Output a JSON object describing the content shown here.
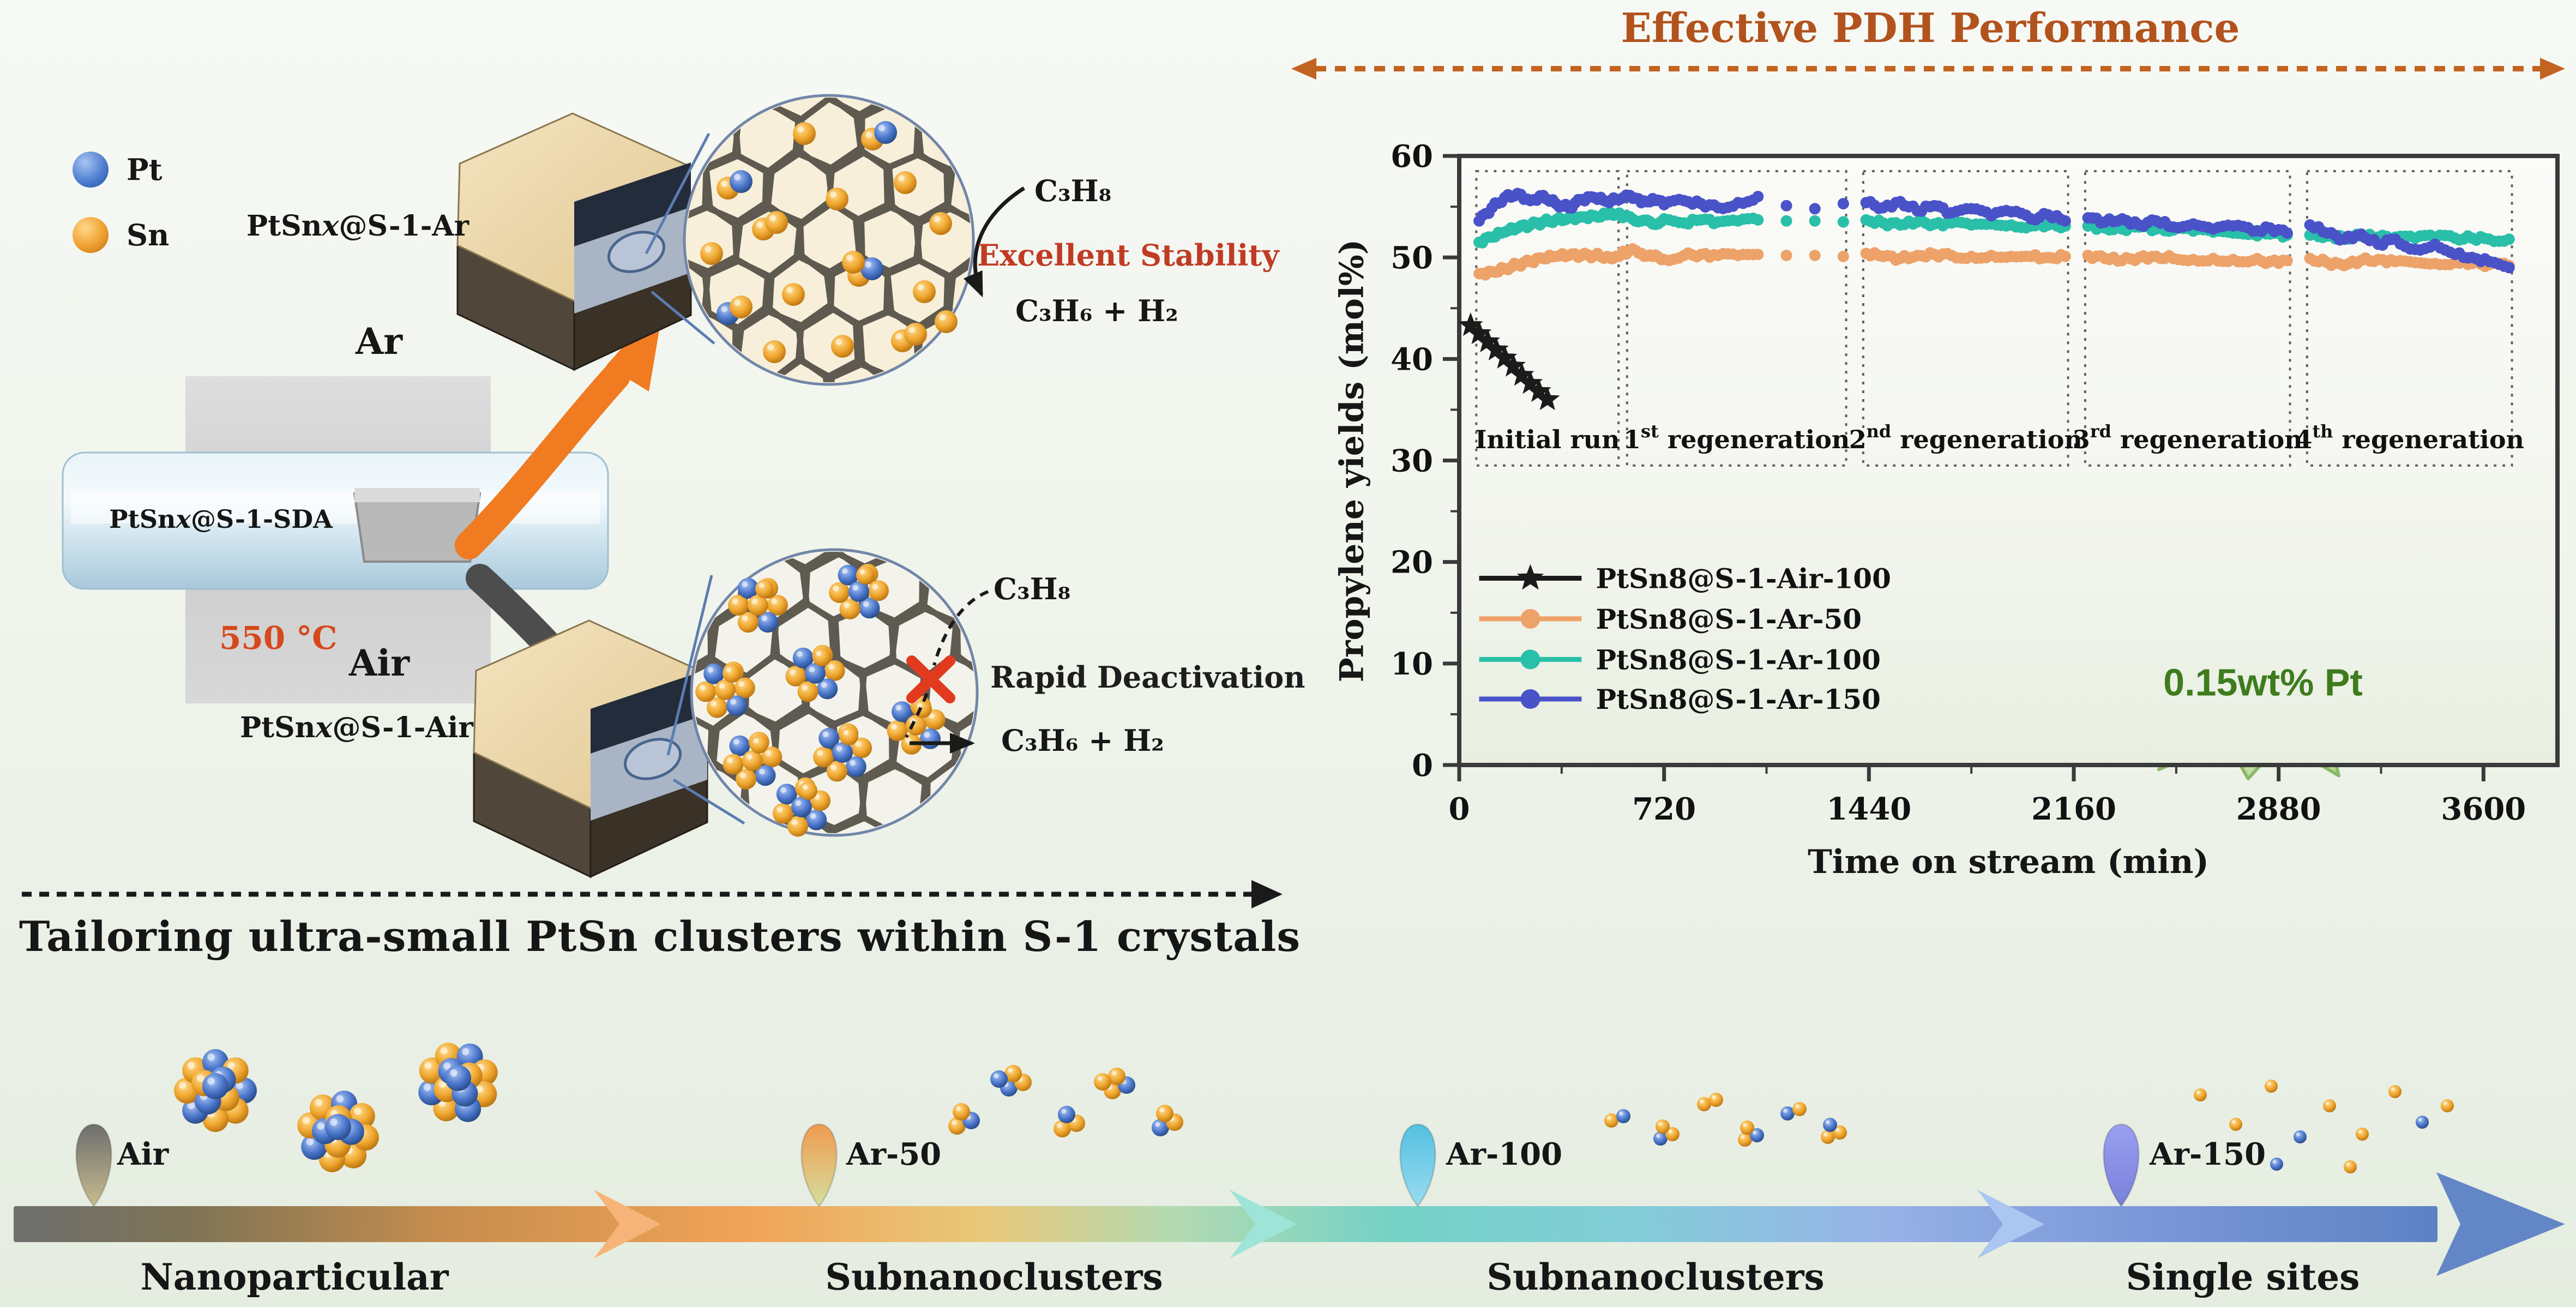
{
  "header": {
    "title": "Effective PDH Performance",
    "title_color": "#b2531d",
    "arrow_color": "#c2641f"
  },
  "left": {
    "atoms": [
      {
        "symbol": "Pt",
        "color": "#4f7fd0"
      },
      {
        "symbol": "Sn",
        "color": "#f0a030"
      }
    ],
    "precursor": {
      "pre": "PtSn",
      "it": "x",
      "post": "@S-1-SDA"
    },
    "ar_product": {
      "pre": "PtSn",
      "it": "x",
      "post": "@S-1-Ar"
    },
    "air_product": {
      "pre": "PtSn",
      "it": "x",
      "post": "@S-1-Air"
    },
    "temperature": "550 °C",
    "ar_gas": "Ar",
    "air_gas": "Air",
    "top_inset": {
      "reactant": "C₃H₈",
      "verdict": "Excellent Stability",
      "verdict_color": "#c13b24",
      "products": "C₃H₆ + H₂"
    },
    "bottom_inset": {
      "reactant": "C₃H₈",
      "verdict": "Rapid Deactivation",
      "verdict_color": "#1d1d1d",
      "products": "C₃H₆ + H₂"
    },
    "tailoring": "Tailoring ultra-small PtSn clusters within S-1 crystals"
  },
  "badge": {
    "text": "0.15wt% Pt",
    "color": "#3e7c1e"
  },
  "chart_data": {
    "type": "scatter",
    "title": "",
    "xlabel": "Time on stream (min)",
    "ylabel": "Propylene yields (mol%)",
    "xlim": [
      0,
      3860
    ],
    "ylim": [
      0,
      60
    ],
    "xticks": [
      0,
      720,
      1440,
      2160,
      2880,
      3600
    ],
    "yticks": [
      0,
      10,
      20,
      30,
      40,
      50,
      60
    ],
    "grid": false,
    "legend_position": "inside-left",
    "box_y": [
      29.5,
      58.5
    ],
    "legend_rows_y": [
      18.4,
      14.4,
      10.4,
      6.5
    ],
    "panels": [
      {
        "num": "",
        "sup": "",
        "rest": "Initial run",
        "t0": 60,
        "t1": 560
      },
      {
        "num": "1",
        "sup": "st",
        "rest": " regeneration",
        "t0": 590,
        "t1": 1360
      },
      {
        "num": "2",
        "sup": "nd",
        "rest": " regeneration",
        "t0": 1420,
        "t1": 2140
      },
      {
        "num": "3",
        "sup": "rd",
        "rest": " regeneration",
        "t0": 2200,
        "t1": 2920
      },
      {
        "num": "4",
        "sup": "th",
        "rest": " regeneration",
        "t0": 2980,
        "t1": 3700
      }
    ],
    "series": [
      {
        "name": "PtSn8@S-1-Air-100",
        "color": "#1b1b1b",
        "marker": "star",
        "points": [
          [
            40,
            43.3
          ],
          [
            70,
            42.5
          ],
          [
            100,
            41.7
          ],
          [
            130,
            40.9
          ],
          [
            160,
            40.1
          ],
          [
            190,
            39.3
          ],
          [
            220,
            38.4
          ],
          [
            250,
            37.6
          ],
          [
            280,
            36.8
          ],
          [
            310,
            36.0
          ]
        ]
      },
      {
        "name": "PtSn8@S-1-Ar-50",
        "color": "#eda269",
        "marker": "circle",
        "points": [
          [
            70,
            48.4
          ],
          [
            115,
            48.6
          ],
          [
            160,
            48.9
          ],
          [
            205,
            49.3
          ],
          [
            250,
            49.6
          ],
          [
            295,
            49.9
          ],
          [
            340,
            50.1
          ],
          [
            385,
            50.2
          ],
          [
            430,
            50.2
          ],
          [
            475,
            50.2
          ],
          [
            520,
            50.1
          ],
          [
            550,
            50.1
          ],
          [
            600,
            50.7
          ],
          [
            640,
            50.4
          ],
          [
            680,
            50.1
          ],
          [
            720,
            49.8
          ],
          [
            790,
            50.2
          ],
          [
            850,
            50.3
          ],
          [
            910,
            50.2
          ],
          [
            980,
            50.2
          ],
          [
            1050,
            50.3
          ],
          [
            1150,
            50.2
          ],
          [
            1250,
            50.2
          ],
          [
            1350,
            50.1
          ],
          [
            1430,
            50.4
          ],
          [
            1490,
            50.1
          ],
          [
            1550,
            49.9
          ],
          [
            1610,
            50.2
          ],
          [
            1670,
            50.3
          ],
          [
            1730,
            50.2
          ],
          [
            1800,
            50.1
          ],
          [
            1870,
            50.2
          ],
          [
            1940,
            50.1
          ],
          [
            2010,
            50.1
          ],
          [
            2070,
            50.0
          ],
          [
            2130,
            50.1
          ],
          [
            2210,
            50.2
          ],
          [
            2270,
            49.9
          ],
          [
            2330,
            49.7
          ],
          [
            2390,
            50.0
          ],
          [
            2450,
            50.1
          ],
          [
            2510,
            49.9
          ],
          [
            2580,
            49.8
          ],
          [
            2650,
            49.9
          ],
          [
            2720,
            49.8
          ],
          [
            2790,
            49.7
          ],
          [
            2850,
            49.6
          ],
          [
            2910,
            49.7
          ],
          [
            2990,
            49.9
          ],
          [
            3050,
            49.5
          ],
          [
            3110,
            49.2
          ],
          [
            3170,
            49.7
          ],
          [
            3230,
            49.8
          ],
          [
            3290,
            49.6
          ],
          [
            3360,
            49.5
          ],
          [
            3430,
            49.4
          ],
          [
            3500,
            49.5
          ],
          [
            3560,
            49.4
          ],
          [
            3620,
            49.3
          ],
          [
            3690,
            49.2
          ]
        ]
      },
      {
        "name": "PtSn8@S-1-Ar-100",
        "color": "#29bfa8",
        "marker": "circle",
        "points": [
          [
            70,
            51.5
          ],
          [
            115,
            52.0
          ],
          [
            160,
            52.5
          ],
          [
            205,
            52.9
          ],
          [
            250,
            53.2
          ],
          [
            295,
            53.5
          ],
          [
            340,
            53.7
          ],
          [
            385,
            53.9
          ],
          [
            430,
            54.0
          ],
          [
            475,
            54.1
          ],
          [
            520,
            54.2
          ],
          [
            550,
            54.2
          ],
          [
            600,
            54.0
          ],
          [
            640,
            53.6
          ],
          [
            680,
            53.3
          ],
          [
            720,
            53.8
          ],
          [
            790,
            53.4
          ],
          [
            850,
            53.7
          ],
          [
            910,
            53.5
          ],
          [
            980,
            53.6
          ],
          [
            1050,
            53.7
          ],
          [
            1150,
            53.6
          ],
          [
            1250,
            53.6
          ],
          [
            1350,
            53.5
          ],
          [
            1430,
            53.7
          ],
          [
            1490,
            53.4
          ],
          [
            1550,
            53.2
          ],
          [
            1610,
            53.5
          ],
          [
            1670,
            53.3
          ],
          [
            1730,
            53.4
          ],
          [
            1800,
            53.2
          ],
          [
            1870,
            53.3
          ],
          [
            1940,
            53.2
          ],
          [
            2010,
            53.1
          ],
          [
            2070,
            53.2
          ],
          [
            2130,
            53.1
          ],
          [
            2210,
            53.1
          ],
          [
            2270,
            52.9
          ],
          [
            2330,
            52.8
          ],
          [
            2390,
            53.0
          ],
          [
            2450,
            52.8
          ],
          [
            2510,
            52.7
          ],
          [
            2580,
            52.6
          ],
          [
            2650,
            52.5
          ],
          [
            2720,
            52.4
          ],
          [
            2790,
            52.3
          ],
          [
            2850,
            52.3
          ],
          [
            2910,
            52.2
          ],
          [
            2990,
            52.2
          ],
          [
            3050,
            52.1
          ],
          [
            3110,
            52.0
          ],
          [
            3170,
            52.1
          ],
          [
            3230,
            52.0
          ],
          [
            3290,
            52.0
          ],
          [
            3360,
            51.9
          ],
          [
            3430,
            52.0
          ],
          [
            3500,
            51.9
          ],
          [
            3560,
            51.9
          ],
          [
            3620,
            51.8
          ],
          [
            3690,
            51.8
          ]
        ]
      },
      {
        "name": "PtSn8@S-1-Ar-150",
        "color": "#4a52c8",
        "marker": "circle",
        "points": [
          [
            70,
            53.6
          ],
          [
            115,
            54.9
          ],
          [
            160,
            55.9
          ],
          [
            205,
            56.3
          ],
          [
            250,
            55.6
          ],
          [
            295,
            56.1
          ],
          [
            340,
            55.3
          ],
          [
            385,
            54.9
          ],
          [
            430,
            55.7
          ],
          [
            475,
            55.9
          ],
          [
            520,
            55.5
          ],
          [
            550,
            55.7
          ],
          [
            600,
            56.1
          ],
          [
            640,
            55.4
          ],
          [
            680,
            55.8
          ],
          [
            720,
            55.2
          ],
          [
            790,
            55.6
          ],
          [
            850,
            55.3
          ],
          [
            910,
            54.9
          ],
          [
            980,
            55.4
          ],
          [
            1050,
            56.0
          ],
          [
            1150,
            55.1
          ],
          [
            1250,
            54.8
          ],
          [
            1350,
            55.3
          ],
          [
            1430,
            55.4
          ],
          [
            1490,
            54.9
          ],
          [
            1550,
            55.5
          ],
          [
            1610,
            54.6
          ],
          [
            1670,
            55.1
          ],
          [
            1730,
            54.4
          ],
          [
            1800,
            54.8
          ],
          [
            1870,
            54.1
          ],
          [
            1940,
            54.5
          ],
          [
            2010,
            53.8
          ],
          [
            2070,
            54.2
          ],
          [
            2130,
            53.6
          ],
          [
            2210,
            53.9
          ],
          [
            2270,
            53.5
          ],
          [
            2330,
            53.8
          ],
          [
            2390,
            53.2
          ],
          [
            2450,
            53.6
          ],
          [
            2510,
            53.0
          ],
          [
            2580,
            53.3
          ],
          [
            2650,
            52.8
          ],
          [
            2720,
            53.1
          ],
          [
            2790,
            52.6
          ],
          [
            2850,
            52.9
          ],
          [
            2910,
            52.4
          ],
          [
            2990,
            53.2
          ],
          [
            3050,
            52.4
          ],
          [
            3110,
            51.8
          ],
          [
            3170,
            52.3
          ],
          [
            3230,
            51.3
          ],
          [
            3290,
            51.8
          ],
          [
            3360,
            50.8
          ],
          [
            3430,
            51.3
          ],
          [
            3500,
            50.3
          ],
          [
            3560,
            50.0
          ],
          [
            3620,
            49.6
          ],
          [
            3690,
            49.0
          ]
        ]
      }
    ]
  },
  "bottom": {
    "stages": [
      {
        "gas": "Air",
        "label": "Nanoparticular",
        "pin_top": "#6e6e6e",
        "pin_bottom": "#c8bc8e"
      },
      {
        "gas": "Ar-50",
        "label": "Subnanoclusters",
        "pin_top": "#f09b50",
        "pin_bottom": "#d4de9e"
      },
      {
        "gas": "Ar-100",
        "label": "Subnanoclusters",
        "pin_top": "#54c0e0",
        "pin_bottom": "#9adcf0"
      },
      {
        "gas": "Ar-150",
        "label": "Single sites",
        "pin_top": "#9a9ff0",
        "pin_bottom": "#7880da"
      }
    ]
  }
}
